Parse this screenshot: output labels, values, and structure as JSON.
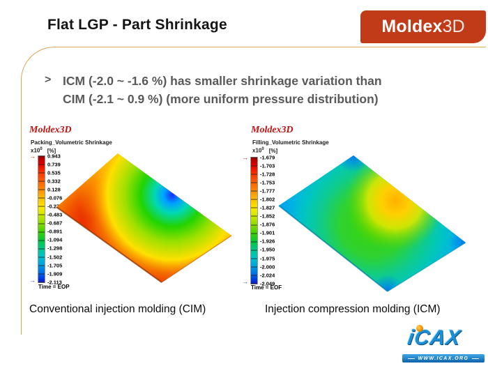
{
  "header": {
    "title": "Flat LGP - Part Shrinkage",
    "logo": {
      "brand_bold": "Moldex",
      "brand_light": "3D",
      "bg_color": "#c23b18"
    }
  },
  "bullet": {
    "marker": ">",
    "line1": "ICM (-2.0 ~ -1.6 %) has smaller shrinkage variation than",
    "line2": "CIM (-2.1 ~ 0.9 %) (more uniform pressure distribution)"
  },
  "icons": {
    "arrow": "→"
  },
  "plots": [
    {
      "watermark": "Moldex3D",
      "title": "Packing_Volumetric Shrinkage",
      "scale_prefix": "x10",
      "scale_exponent": "0",
      "scale_unit": "[%]",
      "ticks": [
        "0.943",
        "0.739",
        "0.535",
        "0.332",
        "0.128",
        "-0.076",
        "-0.279",
        "-0.483",
        "-0.687",
        "-0.891",
        "-1.094",
        "-1.298",
        "-1.502",
        "-1.705",
        "-1.909",
        "-2.113"
      ],
      "time_label": "Time = EOP",
      "caption": "Conventional injection molding (CIM)"
    },
    {
      "watermark": "Moldex3D",
      "title": "Filling_Volumetric Shrinkage",
      "scale_prefix": "x10",
      "scale_exponent": "0",
      "scale_unit": "[%]",
      "ticks": [
        "-1.679",
        "-1.703",
        "-1.728",
        "-1.753",
        "-1.777",
        "-1.802",
        "-1.827",
        "-1.852",
        "-1.876",
        "-1.901",
        "-1.926",
        "-1.950",
        "-1.975",
        "-2.000",
        "-2.024",
        "-2.049"
      ],
      "time_label": "Time = EOF",
      "caption": "Injection compression molding (ICM)"
    }
  ],
  "footer": {
    "logo_text": "iCAX",
    "url": "WWW.ICAX.ORG"
  },
  "colors": {
    "logo_red": "#c23b18",
    "frame_orange": "#dca455",
    "watermark_red": "#c11414",
    "bullet_gray": "#595959",
    "icax_blue": "#1b8ed6"
  },
  "chart_data": [
    {
      "type": "heatmap",
      "title": "Packing_Volumetric Shrinkage",
      "units": "% (x10^0)",
      "colorbar_ticks": [
        0.943,
        0.739,
        0.535,
        0.332,
        0.128,
        -0.076,
        -0.279,
        -0.483,
        -0.687,
        -0.891,
        -1.094,
        -1.298,
        -1.502,
        -1.705,
        -1.909,
        -2.113
      ],
      "range": [
        -2.113,
        0.943
      ],
      "time_stamp": "Time = EOP",
      "legend_position": "left",
      "summary": "CIM flat plate, isometric view: mostly red/orange (shrinkage ~0.1 to 0.9%), yellow rims along edges, localized blue-to-green low region (~-2.1%) near the upper-right edge"
    },
    {
      "type": "heatmap",
      "title": "Filling_Volumetric Shrinkage",
      "units": "% (x10^0)",
      "colorbar_ticks": [
        -1.679,
        -1.703,
        -1.728,
        -1.753,
        -1.777,
        -1.802,
        -1.827,
        -1.852,
        -1.876,
        -1.901,
        -1.926,
        -1.95,
        -1.975,
        -2.0,
        -2.024,
        -2.049
      ],
      "range": [
        -2.049,
        -1.679
      ],
      "time_stamp": "Time = EOF",
      "legend_position": "left",
      "summary": "ICM flat plate, isometric view: uniform green (~-1.9%) with cyan/blue edges and corners, mild yellow/orange region (~-1.7%) right of center"
    }
  ]
}
